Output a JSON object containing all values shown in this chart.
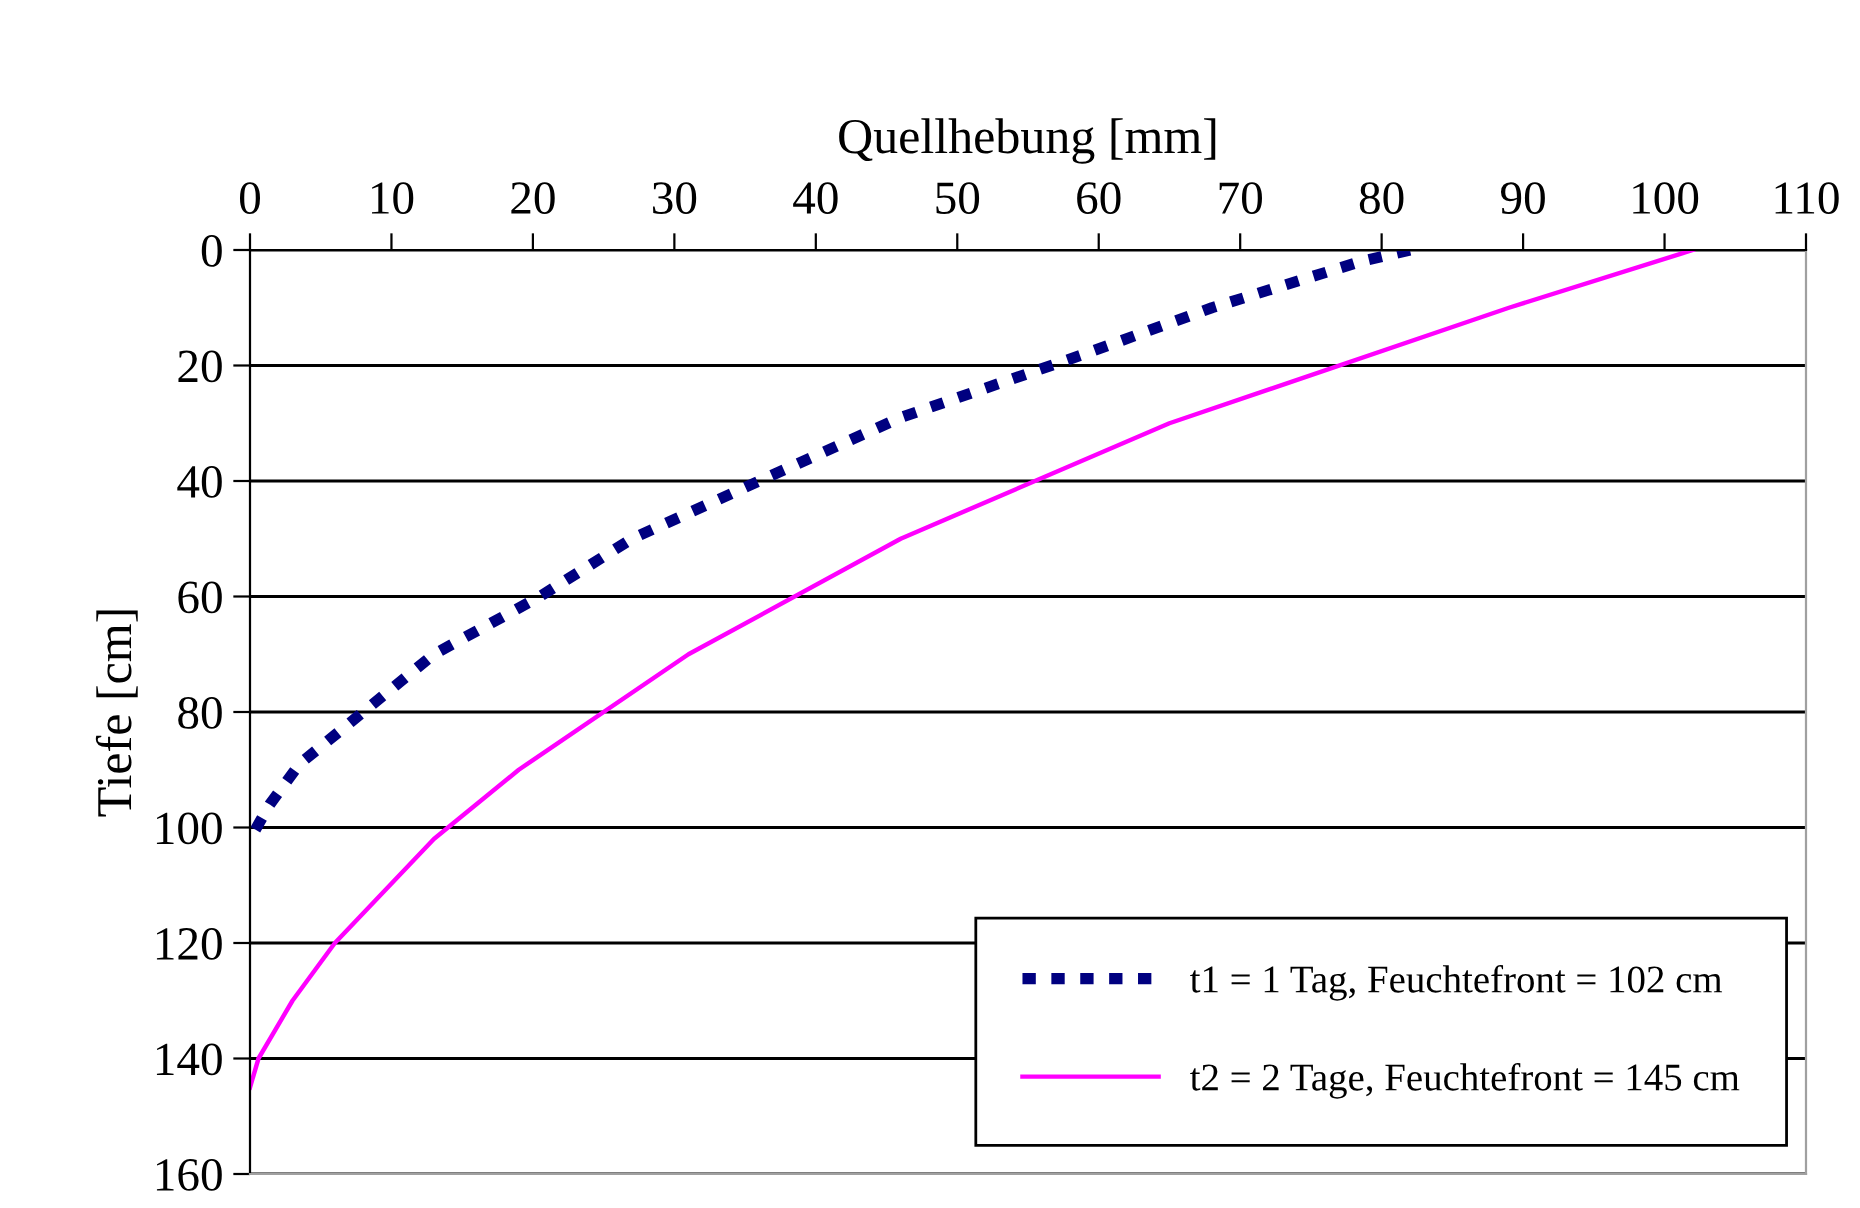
{
  "chart_data": {
    "type": "line",
    "xlabel": "Quellhebung [mm]",
    "ylabel": "Tiefe [cm]",
    "series": [
      {
        "name": "t1 = 1 Tag, Feuchtefront = 102 cm",
        "color": "#000080",
        "line_style": "dashed",
        "x": [
          82,
          78.5,
          68,
          59,
          46,
          36,
          27,
          20.5,
          13,
          8,
          3.5,
          1.4,
          0
        ],
        "values": [
          0,
          2,
          10,
          18,
          29,
          40,
          50,
          60,
          70,
          80,
          89,
          96,
          102
        ]
      },
      {
        "name": "t2 = 2 Tage, Feuchtefront = 145 cm",
        "color": "#ff00ff",
        "line_style": "solid",
        "x": [
          102,
          89,
          65,
          46,
          31,
          19,
          13,
          6,
          3,
          0.6,
          0
        ],
        "values": [
          0,
          10,
          30,
          50,
          70,
          90,
          102,
          120,
          130,
          140,
          145
        ]
      }
    ],
    "xlim": [
      0,
      110
    ],
    "xticks": [
      0,
      10,
      20,
      30,
      40,
      50,
      60,
      70,
      80,
      90,
      100,
      110
    ],
    "ylim": [
      160,
      0
    ],
    "yticks": [
      0,
      20,
      40,
      60,
      80,
      100,
      120,
      140,
      160
    ],
    "grid": "y",
    "legend": "bottom right",
    "marker": "none"
  }
}
